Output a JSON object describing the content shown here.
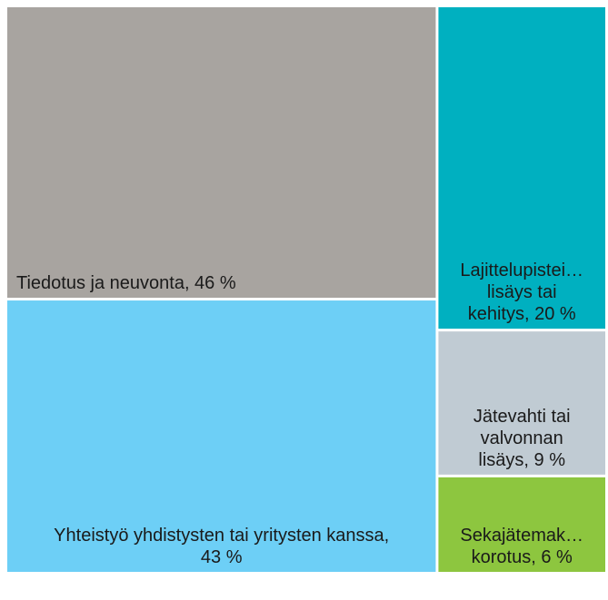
{
  "chart_data": {
    "type": "treemap",
    "values": [
      46,
      43,
      20,
      9,
      6
    ],
    "value_labels": [
      [
        "Tiedotus ja neuvonta, 46 %"
      ],
      [
        "Yhteistyö yhdistysten tai  yritysten kanssa,",
        "43 %"
      ],
      [
        "Lajittelupistei…",
        "lisäys tai",
        "kehitys, 20 %"
      ],
      [
        "Jätevahti tai",
        "valvonnan",
        "lisäys, 9 %"
      ],
      [
        "Sekajätemak…",
        "korotus, 6 %"
      ]
    ],
    "colors": [
      "#a8a4a0",
      "#6dcff6",
      "#00b0c0",
      "#c0cbd3",
      "#8dc63f"
    ]
  }
}
